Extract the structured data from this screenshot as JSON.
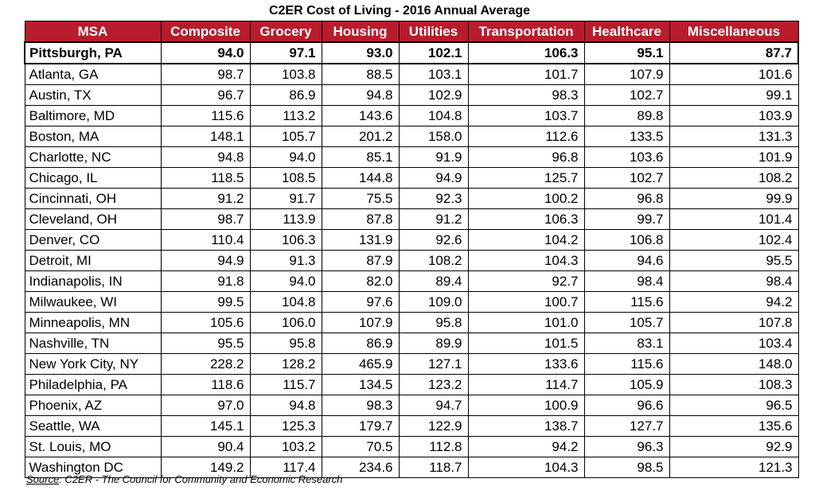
{
  "chart_data": {
    "type": "table",
    "title": "C2ER Cost of Living - 2016 Annual Average",
    "columns": [
      "MSA",
      "Composite",
      "Grocery",
      "Housing",
      "Utilities",
      "Transportation",
      "Healthcare",
      "Miscellaneous"
    ],
    "highlight_row": 0,
    "rows": [
      [
        "Pittsburgh, PA",
        "94.0",
        "97.1",
        "93.0",
        "102.1",
        "106.3",
        "95.1",
        "87.7"
      ],
      [
        "Atlanta, GA",
        "98.7",
        "103.8",
        "88.5",
        "103.1",
        "101.7",
        "107.9",
        "101.6"
      ],
      [
        "Austin, TX",
        "96.7",
        "86.9",
        "94.8",
        "102.9",
        "98.3",
        "102.7",
        "99.1"
      ],
      [
        "Baltimore, MD",
        "115.6",
        "113.2",
        "143.6",
        "104.8",
        "103.7",
        "89.8",
        "103.9"
      ],
      [
        "Boston, MA",
        "148.1",
        "105.7",
        "201.2",
        "158.0",
        "112.6",
        "133.5",
        "131.3"
      ],
      [
        "Charlotte, NC",
        "94.8",
        "94.0",
        "85.1",
        "91.9",
        "96.8",
        "103.6",
        "101.9"
      ],
      [
        "Chicago, IL",
        "118.5",
        "108.5",
        "144.8",
        "94.9",
        "125.7",
        "102.7",
        "108.2"
      ],
      [
        "Cincinnati, OH",
        "91.2",
        "91.7",
        "75.5",
        "92.3",
        "100.2",
        "96.8",
        "99.9"
      ],
      [
        "Cleveland, OH",
        "98.7",
        "113.9",
        "87.8",
        "91.2",
        "106.3",
        "99.7",
        "101.4"
      ],
      [
        "Denver, CO",
        "110.4",
        "106.3",
        "131.9",
        "92.6",
        "104.2",
        "106.8",
        "102.4"
      ],
      [
        "Detroit, MI",
        "94.9",
        "91.3",
        "87.9",
        "108.2",
        "104.3",
        "94.6",
        "95.5"
      ],
      [
        "Indianapolis, IN",
        "91.8",
        "94.0",
        "82.0",
        "89.4",
        "92.7",
        "98.4",
        "98.4"
      ],
      [
        "Milwaukee, WI",
        "99.5",
        "104.8",
        "97.6",
        "109.0",
        "100.7",
        "115.6",
        "94.2"
      ],
      [
        "Minneapolis, MN",
        "105.6",
        "106.0",
        "107.9",
        "95.8",
        "101.0",
        "105.7",
        "107.8"
      ],
      [
        "Nashville, TN",
        "95.5",
        "95.8",
        "86.9",
        "89.9",
        "101.5",
        "83.1",
        "103.4"
      ],
      [
        "New York City, NY",
        "228.2",
        "128.2",
        "465.9",
        "127.1",
        "133.6",
        "115.6",
        "148.0"
      ],
      [
        "Philadelphia, PA",
        "118.6",
        "115.7",
        "134.5",
        "123.2",
        "114.7",
        "105.9",
        "108.3"
      ],
      [
        "Phoenix, AZ",
        "97.0",
        "94.8",
        "98.3",
        "94.7",
        "100.9",
        "96.6",
        "96.5"
      ],
      [
        "Seattle, WA",
        "145.1",
        "125.3",
        "179.7",
        "122.9",
        "138.7",
        "127.7",
        "135.6"
      ],
      [
        "St. Louis, MO",
        "90.4",
        "103.2",
        "70.5",
        "112.8",
        "94.2",
        "96.3",
        "92.9"
      ],
      [
        "Washington DC",
        "149.2",
        "117.4",
        "234.6",
        "118.7",
        "104.3",
        "98.5",
        "121.3"
      ]
    ],
    "header_color": "#b81c2d",
    "header_text_color": "#ffffff"
  },
  "source": {
    "label": "Source",
    "text": ": C2ER - The Council for Community and Economic Research"
  }
}
